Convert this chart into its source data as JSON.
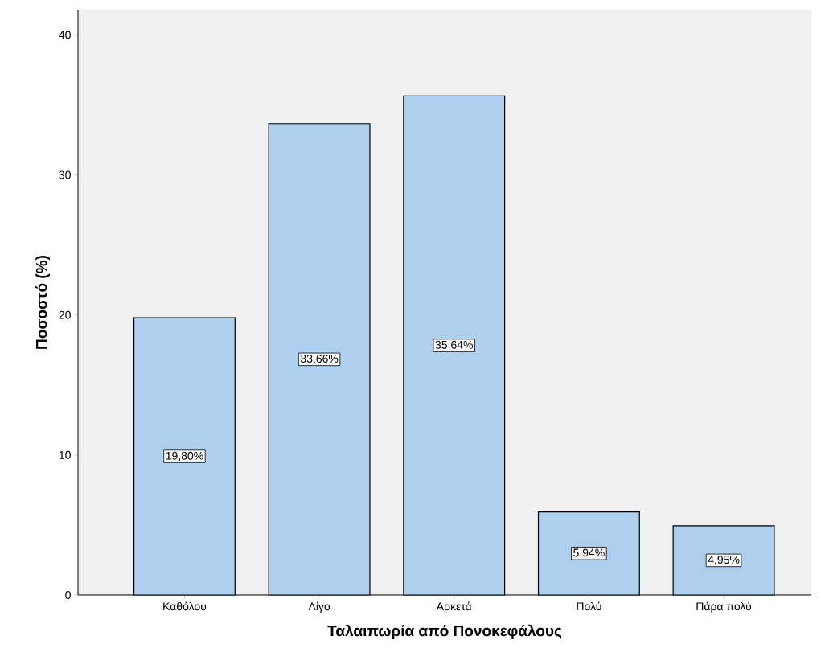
{
  "chart_data": {
    "type": "bar",
    "xlabel": "Ταλαιπωρία από Πονοκεφάλους",
    "ylabel": "Ποσοστό (%)",
    "categories": [
      "Καθόλου",
      "Λίγο",
      "Αρκετά",
      "Πολύ",
      "Πάρα πολύ"
    ],
    "values": [
      19.8,
      33.66,
      35.64,
      5.94,
      4.95
    ],
    "value_labels": [
      "19,80%",
      "33,66%",
      "35,64%",
      "5,94%",
      "4,95%"
    ],
    "color": "#aecfee",
    "ylim": [
      0,
      41.8
    ],
    "yticks": [
      0,
      10,
      20,
      30,
      40
    ]
  }
}
